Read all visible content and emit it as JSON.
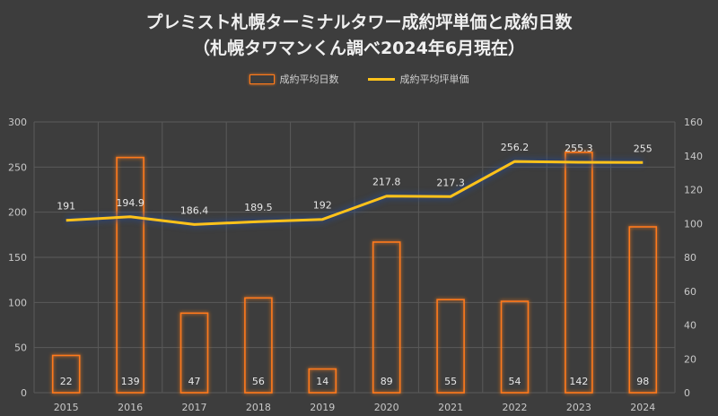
{
  "title_line1": "プレミスト札幌ターミナルタワー成約坪単価と成約日数",
  "title_line2": "（札幌タワマンくん調べ2024年6月現在）",
  "colors": {
    "bar": "#ff7a1a",
    "line": "#ffc21a",
    "grid": "#5a5a5a",
    "axis_text": "#c8c8c8"
  },
  "chart_data": {
    "type": "bar",
    "categories": [
      "2015",
      "2016",
      "2017",
      "2018",
      "2019",
      "2020",
      "2021",
      "2022",
      "2023",
      "2024"
    ],
    "series": [
      {
        "name": "成約平均日数",
        "type": "bar",
        "axis": "right",
        "values": [
          22,
          139,
          47,
          56,
          14,
          89,
          55,
          54,
          142,
          98
        ]
      },
      {
        "name": "成約平均坪単価",
        "type": "line",
        "axis": "left",
        "values": [
          191,
          194.9,
          186.4,
          189.5,
          192,
          217.8,
          217.3,
          256.2,
          255.3,
          255
        ]
      }
    ],
    "y_left": {
      "min": 0,
      "max": 300,
      "ticks": [
        0,
        50,
        100,
        150,
        200,
        250,
        300
      ]
    },
    "y_right": {
      "min": 0,
      "max": 160,
      "ticks": [
        0,
        20,
        40,
        60,
        80,
        100,
        120,
        140,
        160
      ]
    },
    "grid": true,
    "legend": "top-center"
  }
}
